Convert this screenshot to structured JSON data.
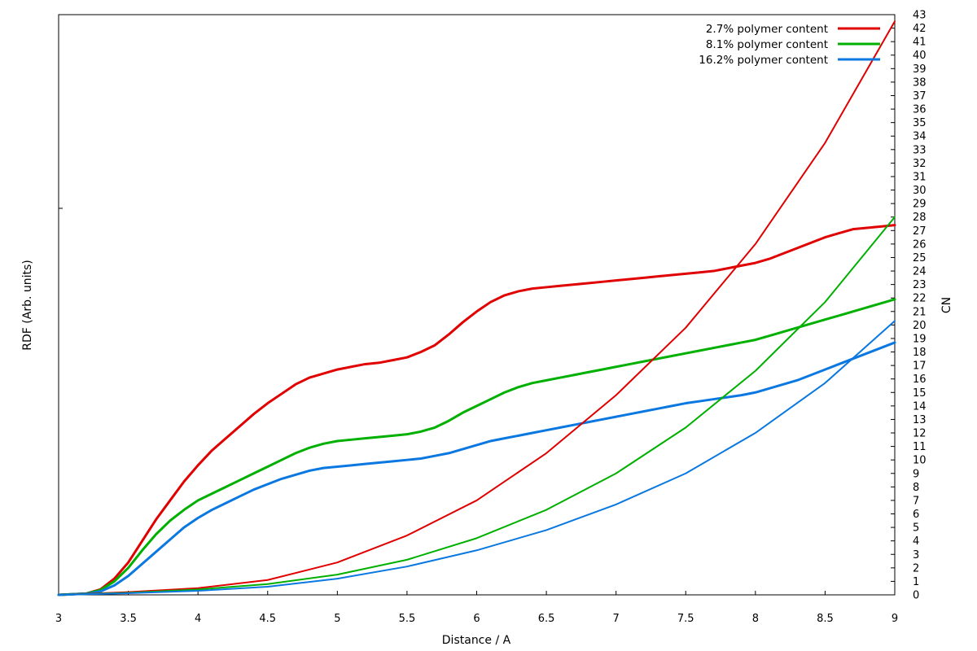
{
  "chart_data": {
    "type": "line",
    "xlabel": "Distance / A",
    "ylabel": "RDF (Arb. units)",
    "y2label": "CN",
    "xlim": [
      3,
      9
    ],
    "y2lim": [
      0,
      43
    ],
    "x_ticks": [
      "3",
      "3.5",
      "4",
      "4.5",
      "5",
      "5.5",
      "6",
      "6.5",
      "7",
      "7.5",
      "8",
      "8.5",
      "9"
    ],
    "y2_ticks": [
      "0",
      "1",
      "2",
      "3",
      "4",
      "5",
      "6",
      "7",
      "8",
      "9",
      "10",
      "11",
      "12",
      "13",
      "14",
      "15",
      "16",
      "17",
      "18",
      "19",
      "20",
      "21",
      "22",
      "23",
      "24",
      "25",
      "26",
      "27",
      "28",
      "29",
      "30",
      "31",
      "32",
      "33",
      "34",
      "35",
      "36",
      "37",
      "38",
      "39",
      "40",
      "41",
      "42",
      "43"
    ],
    "grid": false,
    "legend_position": "top-right",
    "colors": {
      "red": "#e00000",
      "green": "#00b000",
      "blue": "#0a78e0"
    },
    "legend": [
      {
        "label": "2.7% polymer content",
        "color": "#e00000"
      },
      {
        "label": "8.1% polymer content",
        "color": "#00b000"
      },
      {
        "label": "16.2% polymer content",
        "color": "#0a78e0"
      }
    ],
    "series": [
      {
        "name": "2.7% polymer content",
        "kind": "rdf",
        "color": "#e00000",
        "axis": "right",
        "x": [
          3.0,
          3.2,
          3.3,
          3.4,
          3.5,
          3.6,
          3.7,
          3.8,
          3.9,
          4.0,
          4.1,
          4.2,
          4.3,
          4.4,
          4.5,
          4.6,
          4.7,
          4.8,
          4.9,
          5.0,
          5.1,
          5.2,
          5.3,
          5.4,
          5.5,
          5.6,
          5.7,
          5.8,
          5.9,
          6.0,
          6.1,
          6.2,
          6.3,
          6.4,
          6.5,
          6.6,
          6.7,
          6.8,
          6.9,
          7.0,
          7.1,
          7.2,
          7.3,
          7.4,
          7.5,
          7.6,
          7.7,
          7.8,
          7.9,
          8.0,
          8.1,
          8.2,
          8.3,
          8.4,
          8.5,
          8.6,
          8.7,
          8.8,
          8.9,
          9.0
        ],
        "y": [
          0,
          0.1,
          0.4,
          1.2,
          2.4,
          4.0,
          5.6,
          7.0,
          8.4,
          9.6,
          10.7,
          11.6,
          12.5,
          13.4,
          14.2,
          14.9,
          15.6,
          16.1,
          16.4,
          16.7,
          16.9,
          17.1,
          17.2,
          17.4,
          17.6,
          18.0,
          18.5,
          19.3,
          20.2,
          21.0,
          21.7,
          22.2,
          22.5,
          22.7,
          22.8,
          22.9,
          23.0,
          23.1,
          23.2,
          23.3,
          23.4,
          23.5,
          23.6,
          23.7,
          23.8,
          23.9,
          24.0,
          24.2,
          24.4,
          24.6,
          24.9,
          25.3,
          25.7,
          26.1,
          26.5,
          26.8,
          27.1,
          27.2,
          27.3,
          27.4
        ]
      },
      {
        "name": "8.1% polymer content",
        "kind": "rdf",
        "color": "#00b000",
        "axis": "right",
        "x": [
          3.0,
          3.2,
          3.3,
          3.4,
          3.5,
          3.6,
          3.7,
          3.8,
          3.9,
          4.0,
          4.1,
          4.2,
          4.3,
          4.4,
          4.5,
          4.6,
          4.7,
          4.8,
          4.9,
          5.0,
          5.1,
          5.2,
          5.3,
          5.4,
          5.5,
          5.6,
          5.7,
          5.8,
          5.9,
          6.0,
          6.1,
          6.2,
          6.3,
          6.4,
          6.5,
          6.6,
          6.7,
          6.8,
          6.9,
          7.0,
          7.1,
          7.2,
          7.3,
          7.4,
          7.5,
          7.6,
          7.7,
          7.8,
          7.9,
          8.0,
          8.1,
          8.2,
          8.3,
          8.4,
          8.5,
          8.6,
          8.7,
          8.8,
          8.9,
          9.0
        ],
        "y": [
          0,
          0.1,
          0.35,
          1.0,
          2.0,
          3.3,
          4.5,
          5.5,
          6.3,
          7.0,
          7.5,
          8.0,
          8.5,
          9.0,
          9.5,
          10.0,
          10.5,
          10.9,
          11.2,
          11.4,
          11.5,
          11.6,
          11.7,
          11.8,
          11.9,
          12.1,
          12.4,
          12.9,
          13.5,
          14.0,
          14.5,
          15.0,
          15.4,
          15.7,
          15.9,
          16.1,
          16.3,
          16.5,
          16.7,
          16.9,
          17.1,
          17.3,
          17.5,
          17.7,
          17.9,
          18.1,
          18.3,
          18.5,
          18.7,
          18.9,
          19.2,
          19.5,
          19.8,
          20.1,
          20.4,
          20.7,
          21.0,
          21.3,
          21.6,
          21.9
        ]
      },
      {
        "name": "16.2% polymer content",
        "kind": "rdf",
        "color": "#0a78e0",
        "axis": "right",
        "x": [
          3.0,
          3.2,
          3.3,
          3.4,
          3.5,
          3.6,
          3.7,
          3.8,
          3.9,
          4.0,
          4.1,
          4.2,
          4.3,
          4.4,
          4.5,
          4.6,
          4.7,
          4.8,
          4.9,
          5.0,
          5.1,
          5.2,
          5.3,
          5.4,
          5.5,
          5.6,
          5.7,
          5.8,
          5.9,
          6.0,
          6.1,
          6.2,
          6.3,
          6.4,
          6.5,
          6.6,
          6.7,
          6.8,
          6.9,
          7.0,
          7.1,
          7.2,
          7.3,
          7.4,
          7.5,
          7.6,
          7.7,
          7.8,
          7.9,
          8.0,
          8.1,
          8.2,
          8.3,
          8.4,
          8.5,
          8.6,
          8.7,
          8.8,
          8.9,
          9.0
        ],
        "y": [
          0,
          0.08,
          0.25,
          0.7,
          1.4,
          2.3,
          3.2,
          4.1,
          5.0,
          5.7,
          6.3,
          6.8,
          7.3,
          7.8,
          8.2,
          8.6,
          8.9,
          9.2,
          9.4,
          9.5,
          9.6,
          9.7,
          9.8,
          9.9,
          10.0,
          10.1,
          10.3,
          10.5,
          10.8,
          11.1,
          11.4,
          11.6,
          11.8,
          12.0,
          12.2,
          12.4,
          12.6,
          12.8,
          13.0,
          13.2,
          13.4,
          13.6,
          13.8,
          14.0,
          14.2,
          14.35,
          14.5,
          14.65,
          14.8,
          15.0,
          15.3,
          15.6,
          15.9,
          16.3,
          16.7,
          17.1,
          17.5,
          17.9,
          18.3,
          18.7
        ]
      },
      {
        "name": "2.7% polymer content",
        "kind": "cn",
        "color": "#e00000",
        "axis": "right",
        "x": [
          3.0,
          3.5,
          4.0,
          4.5,
          5.0,
          5.5,
          6.0,
          6.5,
          7.0,
          7.5,
          8.0,
          8.5,
          9.0
        ],
        "y": [
          0,
          0.2,
          0.5,
          1.1,
          2.4,
          4.4,
          7.0,
          10.5,
          14.8,
          19.8,
          26.0,
          33.5,
          42.5
        ]
      },
      {
        "name": "8.1% polymer content",
        "kind": "cn",
        "color": "#00b000",
        "axis": "right",
        "x": [
          3.0,
          3.5,
          4.0,
          4.5,
          5.0,
          5.5,
          6.0,
          6.5,
          7.0,
          7.5,
          8.0,
          8.5,
          9.0
        ],
        "y": [
          0,
          0.15,
          0.4,
          0.8,
          1.5,
          2.6,
          4.2,
          6.3,
          9.0,
          12.4,
          16.6,
          21.7,
          28.0
        ]
      },
      {
        "name": "16.2% polymer content",
        "kind": "cn",
        "color": "#0a78e0",
        "axis": "right",
        "x": [
          3.0,
          3.5,
          4.0,
          4.5,
          5.0,
          5.5,
          6.0,
          6.5,
          7.0,
          7.5,
          8.0,
          8.5,
          9.0
        ],
        "y": [
          0,
          0.12,
          0.3,
          0.6,
          1.2,
          2.1,
          3.3,
          4.8,
          6.7,
          9.0,
          12.0,
          15.7,
          20.3
        ]
      }
    ]
  }
}
